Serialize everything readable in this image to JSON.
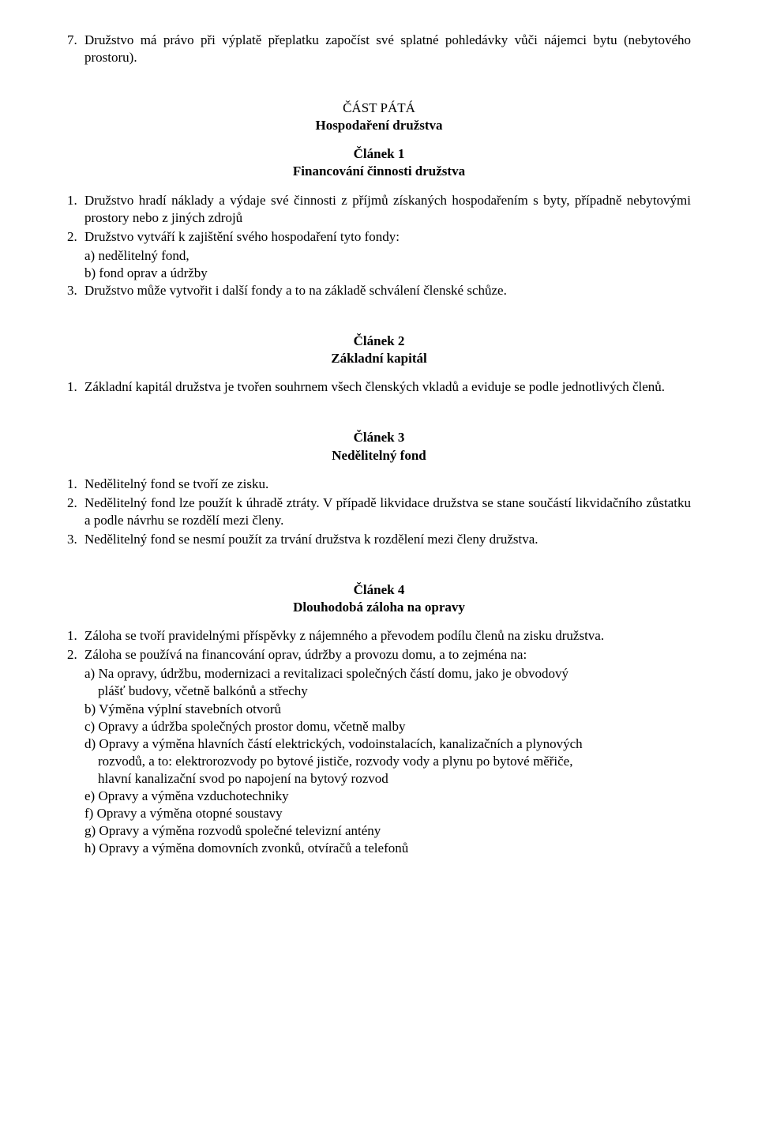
{
  "intro": {
    "num": "7.",
    "text": "Družstvo má právo při výplatě přeplatku započíst své splatné pohledávky vůči nájemci bytu (nebytového prostoru)."
  },
  "part5": {
    "title": "ČÁST PÁTÁ",
    "subtitle": "Hospodaření družstva"
  },
  "art1": {
    "heading": "Článek 1",
    "subheading": "Financování činnosti družstva",
    "items": [
      {
        "num": "1.",
        "text": "Družstvo hradí náklady a výdaje své činnosti z příjmů získaných hospodařením s byty, případně nebytovými prostory nebo z jiných zdrojů"
      },
      {
        "num": "2.",
        "text": "Družstvo vytváří k zajištění svého hospodaření tyto fondy:"
      }
    ],
    "sub2": {
      "a": "a) nedělitelný fond,",
      "b": "b) fond oprav a údržby"
    },
    "item3": {
      "num": "3.",
      "text": "Družstvo může vytvořit i další fondy a to na základě schválení členské schůze."
    }
  },
  "art2": {
    "heading": "Článek 2",
    "subheading": "Základní kapitál",
    "item1": {
      "num": "1.",
      "text": "Základní kapitál družstva je tvořen souhrnem všech   členských vkladů  a eviduje se podle jednotlivých členů."
    }
  },
  "art3": {
    "heading": "Článek 3",
    "subheading": "Nedělitelný fond",
    "items": [
      {
        "num": "1.",
        "text": "Nedělitelný fond se tvoří ze zisku."
      },
      {
        "num": "2.",
        "text": "Nedělitelný fond lze použít k úhradě ztráty. V případě likvidace družstva se stane součástí likvidačního zůstatku a podle návrhu se rozdělí mezi členy."
      },
      {
        "num": "3.",
        "text": "Nedělitelný fond se nesmí použít za trvání družstva k rozdělení mezi členy družstva."
      }
    ]
  },
  "art4": {
    "heading": "Článek 4",
    "subheading": "Dlouhodobá záloha na opravy",
    "item1": {
      "num": "1.",
      "text": "Záloha se tvoří pravidelnými příspěvky z nájemného a převodem podílu členů na zisku družstva."
    },
    "item2": {
      "num": "2.",
      "text": "Záloha se používá na financování oprav, údržby a provozu domu, a to zejména na:"
    },
    "sub": {
      "a_line1": "a) Na opravy, údržbu, modernizaci a revitalizaci společných částí domu, jako je obvodový",
      "a_line2": "    plášť budovy, včetně balkónů a střechy",
      "b": "b)  Výměna výplní  stavebních otvorů",
      "c": "c)  Opravy a údržba společných prostor domu, včetně malby",
      "d_line1": "d)  Opravy a výměna hlavních částí elektrických, vodoinstalacích, kanalizačních a plynových",
      "d_line2": "    rozvodů, a to: elektrorozvody po bytové jističe, rozvody vody a plynu po bytové měřiče,",
      "d_line3": "    hlavní kanalizační svod po napojení na bytový rozvod",
      "e": "e)  Opravy a výměna vzduchotechniky",
      "f": "f)  Opravy a výměna otopné soustavy",
      "g": "g)  Opravy a výměna rozvodů společné televizní antény",
      "h": "h)  Opravy a výměna domovních zvonků, otvíračů a telefonů"
    }
  }
}
